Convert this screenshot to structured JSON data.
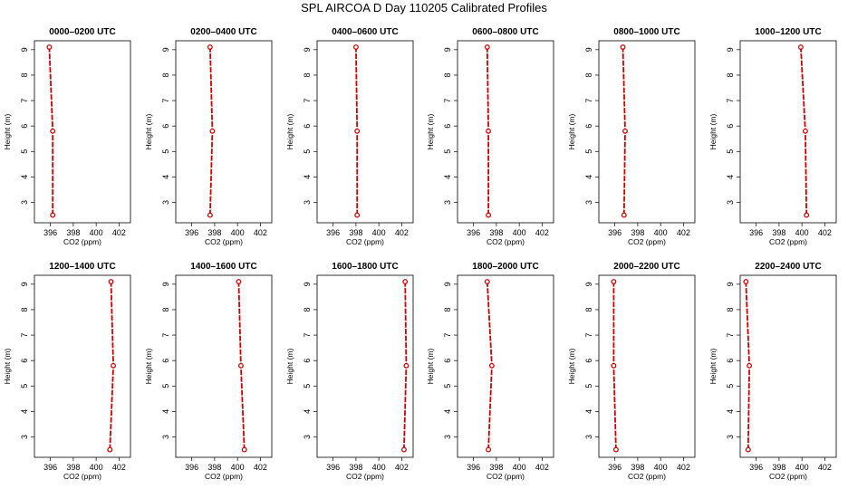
{
  "figure": {
    "title": "SPL AIRCOA D  Day 110205  Calibrated Profiles"
  },
  "colors": {
    "series": "#d40000",
    "axes": "#000000",
    "background": "#ffffff"
  },
  "chart_data": [
    {
      "type": "line",
      "title": "0000–0200 UTC",
      "xlabel": "CO2 (ppm)",
      "ylabel": "Height (m)",
      "xlim": [
        394.6,
        403.0
      ],
      "ylim": [
        2.2,
        9.35
      ],
      "xticks": [
        "396",
        "398",
        "400",
        "402"
      ],
      "yticks": [
        "3",
        "4",
        "5",
        "6",
        "7",
        "8",
        "9"
      ],
      "x": [
        396.2,
        396.2,
        395.9
      ],
      "y": [
        2.5,
        5.8,
        9.1
      ]
    },
    {
      "type": "line",
      "title": "0200–0400 UTC",
      "xlabel": "CO2 (ppm)",
      "ylabel": "Height (m)",
      "xlim": [
        394.6,
        403.0
      ],
      "ylim": [
        2.2,
        9.35
      ],
      "xticks": [
        "396",
        "398",
        "400",
        "402"
      ],
      "yticks": [
        "3",
        "4",
        "5",
        "6",
        "7",
        "8",
        "9"
      ],
      "x": [
        397.6,
        397.8,
        397.6
      ],
      "y": [
        2.5,
        5.8,
        9.1
      ]
    },
    {
      "type": "line",
      "title": "0400–0600 UTC",
      "xlabel": "CO2 (ppm)",
      "ylabel": "Height (m)",
      "xlim": [
        394.6,
        403.0
      ],
      "ylim": [
        2.2,
        9.35
      ],
      "xticks": [
        "396",
        "398",
        "400",
        "402"
      ],
      "yticks": [
        "3",
        "4",
        "5",
        "6",
        "7",
        "8",
        "9"
      ],
      "x": [
        398.1,
        398.1,
        398.0
      ],
      "y": [
        2.5,
        5.8,
        9.1
      ]
    },
    {
      "type": "line",
      "title": "0600–0800 UTC",
      "xlabel": "CO2 (ppm)",
      "ylabel": "Height (m)",
      "xlim": [
        394.6,
        403.0
      ],
      "ylim": [
        2.2,
        9.35
      ],
      "xticks": [
        "396",
        "398",
        "400",
        "402"
      ],
      "yticks": [
        "3",
        "4",
        "5",
        "6",
        "7",
        "8",
        "9"
      ],
      "x": [
        397.3,
        397.3,
        397.2
      ],
      "y": [
        2.5,
        5.8,
        9.1
      ]
    },
    {
      "type": "line",
      "title": "0800–1000 UTC",
      "xlabel": "CO2 (ppm)",
      "ylabel": "Height (m)",
      "xlim": [
        394.6,
        403.0
      ],
      "ylim": [
        2.2,
        9.35
      ],
      "xticks": [
        "396",
        "398",
        "400",
        "402"
      ],
      "yticks": [
        "3",
        "4",
        "5",
        "6",
        "7",
        "8",
        "9"
      ],
      "x": [
        396.8,
        396.9,
        396.7
      ],
      "y": [
        2.5,
        5.8,
        9.1
      ]
    },
    {
      "type": "line",
      "title": "1000–1200 UTC",
      "xlabel": "CO2 (ppm)",
      "ylabel": "Height (m)",
      "xlim": [
        394.6,
        403.0
      ],
      "ylim": [
        2.2,
        9.35
      ],
      "xticks": [
        "396",
        "398",
        "400",
        "402"
      ],
      "yticks": [
        "3",
        "4",
        "5",
        "6",
        "7",
        "8",
        "9"
      ],
      "x": [
        400.4,
        400.3,
        399.9
      ],
      "y": [
        2.5,
        5.8,
        9.1
      ]
    },
    {
      "type": "line",
      "title": "1200–1400 UTC",
      "xlabel": "CO2 (ppm)",
      "ylabel": "Height (m)",
      "xlim": [
        394.6,
        403.0
      ],
      "ylim": [
        2.2,
        9.35
      ],
      "xticks": [
        "396",
        "398",
        "400",
        "402"
      ],
      "yticks": [
        "3",
        "4",
        "5",
        "6",
        "7",
        "8",
        "9"
      ],
      "x": [
        401.2,
        401.5,
        401.3
      ],
      "y": [
        2.5,
        5.8,
        9.1
      ]
    },
    {
      "type": "line",
      "title": "1400–1600 UTC",
      "xlabel": "CO2 (ppm)",
      "ylabel": "Height (m)",
      "xlim": [
        394.6,
        403.0
      ],
      "ylim": [
        2.2,
        9.35
      ],
      "xticks": [
        "396",
        "398",
        "400",
        "402"
      ],
      "yticks": [
        "3",
        "4",
        "5",
        "6",
        "7",
        "8",
        "9"
      ],
      "x": [
        400.6,
        400.3,
        400.1
      ],
      "y": [
        2.5,
        5.8,
        9.1
      ]
    },
    {
      "type": "line",
      "title": "1600–1800 UTC",
      "xlabel": "CO2 (ppm)",
      "ylabel": "Height (m)",
      "xlim": [
        394.6,
        403.0
      ],
      "ylim": [
        2.2,
        9.35
      ],
      "xticks": [
        "396",
        "398",
        "400",
        "402"
      ],
      "yticks": [
        "3",
        "4",
        "5",
        "6",
        "7",
        "8",
        "9"
      ],
      "x": [
        402.2,
        402.4,
        402.3
      ],
      "y": [
        2.5,
        5.8,
        9.1
      ]
    },
    {
      "type": "line",
      "title": "1800–2000 UTC",
      "xlabel": "CO2 (ppm)",
      "ylabel": "Height (m)",
      "xlim": [
        394.6,
        403.0
      ],
      "ylim": [
        2.2,
        9.35
      ],
      "xticks": [
        "396",
        "398",
        "400",
        "402"
      ],
      "yticks": [
        "3",
        "4",
        "5",
        "6",
        "7",
        "8",
        "9"
      ],
      "x": [
        397.3,
        397.6,
        397.2
      ],
      "y": [
        2.5,
        5.8,
        9.1
      ]
    },
    {
      "type": "line",
      "title": "2000–2200 UTC",
      "xlabel": "CO2 (ppm)",
      "ylabel": "Height (m)",
      "xlim": [
        394.6,
        403.0
      ],
      "ylim": [
        2.2,
        9.35
      ],
      "xticks": [
        "396",
        "398",
        "400",
        "402"
      ],
      "yticks": [
        "3",
        "4",
        "5",
        "6",
        "7",
        "8",
        "9"
      ],
      "x": [
        396.1,
        395.9,
        395.9
      ],
      "y": [
        2.5,
        5.8,
        9.1
      ]
    },
    {
      "type": "line",
      "title": "2200–2400 UTC",
      "xlabel": "CO2 (ppm)",
      "ylabel": "Height (m)",
      "xlim": [
        394.6,
        403.0
      ],
      "ylim": [
        2.2,
        9.35
      ],
      "xticks": [
        "396",
        "398",
        "400",
        "402"
      ],
      "yticks": [
        "3",
        "4",
        "5",
        "6",
        "7",
        "8",
        "9"
      ],
      "x": [
        395.3,
        395.4,
        395.1
      ],
      "y": [
        2.5,
        5.8,
        9.1
      ]
    }
  ]
}
